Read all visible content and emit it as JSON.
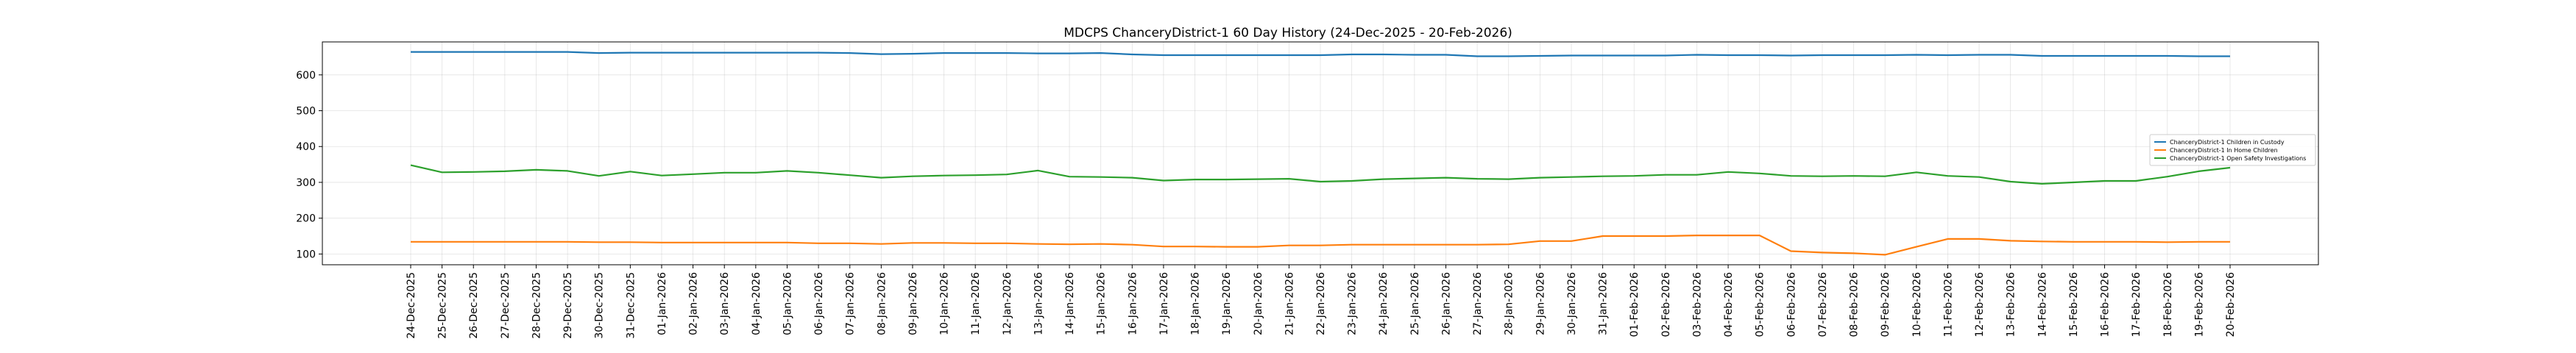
{
  "chart_data": {
    "type": "line",
    "title": "MDCPS ChanceryDistrict-1 60 Day History (24-Dec-2025 - 20-Feb-2026)",
    "xlabel": "",
    "ylabel": "",
    "ylim": [
      70,
      692
    ],
    "yticks": [
      100,
      200,
      300,
      400,
      500,
      600
    ],
    "grid": true,
    "legend_position": "center-right",
    "categories": [
      "24-Dec-2025",
      "25-Dec-2025",
      "26-Dec-2025",
      "27-Dec-2025",
      "28-Dec-2025",
      "29-Dec-2025",
      "30-Dec-2025",
      "31-Dec-2025",
      "01-Jan-2026",
      "02-Jan-2026",
      "03-Jan-2026",
      "04-Jan-2026",
      "05-Jan-2026",
      "06-Jan-2026",
      "07-Jan-2026",
      "08-Jan-2026",
      "09-Jan-2026",
      "10-Jan-2026",
      "11-Jan-2026",
      "12-Jan-2026",
      "13-Jan-2026",
      "14-Jan-2026",
      "15-Jan-2026",
      "16-Jan-2026",
      "17-Jan-2026",
      "18-Jan-2026",
      "19-Jan-2026",
      "20-Jan-2026",
      "21-Jan-2026",
      "22-Jan-2026",
      "23-Jan-2026",
      "24-Jan-2026",
      "25-Jan-2026",
      "26-Jan-2026",
      "27-Jan-2026",
      "28-Jan-2026",
      "29-Jan-2026",
      "30-Jan-2026",
      "31-Jan-2026",
      "01-Feb-2026",
      "02-Feb-2026",
      "03-Feb-2026",
      "04-Feb-2026",
      "05-Feb-2026",
      "06-Feb-2026",
      "07-Feb-2026",
      "08-Feb-2026",
      "09-Feb-2026",
      "10-Feb-2026",
      "11-Feb-2026",
      "12-Feb-2026",
      "13-Feb-2026",
      "14-Feb-2026",
      "15-Feb-2026",
      "16-Feb-2026",
      "17-Feb-2026",
      "18-Feb-2026",
      "19-Feb-2026",
      "20-Feb-2026"
    ],
    "series": [
      {
        "name": "ChanceryDistrict-1 Children in Custody",
        "color": "#1f77b4",
        "values": [
          664,
          664,
          664,
          664,
          664,
          664,
          661,
          662,
          662,
          662,
          662,
          662,
          662,
          662,
          661,
          658,
          659,
          661,
          661,
          661,
          660,
          660,
          661,
          657,
          655,
          655,
          655,
          655,
          655,
          655,
          657,
          657,
          656,
          656,
          652,
          652,
          653,
          654,
          654,
          654,
          654,
          656,
          655,
          655,
          654,
          655,
          655,
          655,
          656,
          655,
          656,
          656,
          653,
          653,
          653,
          653,
          653,
          652,
          652
        ]
      },
      {
        "name": "ChanceryDistrict-1 In Home Children",
        "color": "#ff7f0e",
        "values": [
          134,
          134,
          134,
          134,
          134,
          134,
          133,
          133,
          132,
          132,
          132,
          132,
          132,
          130,
          130,
          128,
          131,
          131,
          130,
          130,
          128,
          127,
          128,
          126,
          121,
          121,
          120,
          120,
          124,
          124,
          126,
          126,
          126,
          126,
          126,
          127,
          136,
          136,
          150,
          150,
          150,
          152,
          152,
          152,
          108,
          104,
          102,
          98,
          120,
          142,
          142,
          137,
          135,
          134,
          134,
          134,
          133,
          134,
          134
        ]
      },
      {
        "name": "ChanceryDistrict-1 Open Safety Investigations",
        "color": "#2ca02c",
        "values": [
          348,
          328,
          329,
          331,
          335,
          332,
          318,
          330,
          319,
          323,
          327,
          327,
          332,
          327,
          320,
          313,
          317,
          319,
          320,
          322,
          333,
          316,
          315,
          313,
          305,
          308,
          308,
          309,
          310,
          302,
          304,
          309,
          311,
          313,
          310,
          309,
          313,
          315,
          317,
          318,
          321,
          321,
          329,
          325,
          318,
          317,
          318,
          317,
          328,
          318,
          315,
          302,
          296,
          300,
          304,
          304,
          316,
          331,
          341
        ]
      }
    ]
  }
}
